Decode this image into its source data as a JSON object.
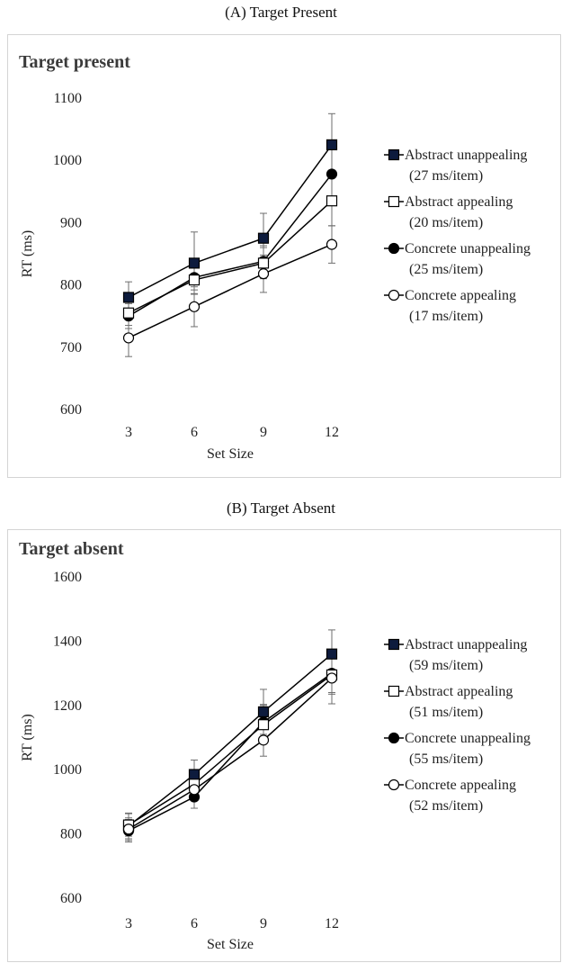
{
  "panels": [
    {
      "caption": "(A) Target Present"
    },
    {
      "caption": "(B) Target Absent"
    }
  ],
  "chart_data": [
    {
      "type": "line",
      "title": "Target present",
      "xlabel": "Set Size",
      "ylabel": "RT (ms)",
      "categories": [
        "3",
        "6",
        "9",
        "12"
      ],
      "x": [
        3,
        6,
        9,
        12
      ],
      "ylim": [
        600,
        1100
      ],
      "yticks": [
        "600",
        "700",
        "800",
        "900",
        "1000",
        "1100"
      ],
      "grid": false,
      "legend_position": "right",
      "series": [
        {
          "name": "Abstract unappealing",
          "slope": "(27 ms/item)",
          "marker": "square-filled",
          "values": [
            780,
            835,
            875,
            1025
          ],
          "errors": [
            25,
            50,
            40,
            50
          ]
        },
        {
          "name": "Abstract appealing",
          "slope": "(20 ms/item)",
          "marker": "square-open",
          "values": [
            755,
            808,
            835,
            935
          ],
          "errors": [
            20,
            22,
            25,
            40
          ]
        },
        {
          "name": "Concrete unappealing",
          "slope": "(25 ms/item)",
          "marker": "circle-filled",
          "values": [
            750,
            812,
            838,
            978
          ],
          "errors": [
            20,
            20,
            25,
            40
          ]
        },
        {
          "name": "Concrete appealing",
          "slope": "(17 ms/item)",
          "marker": "circle-open",
          "values": [
            715,
            765,
            818,
            865
          ],
          "errors": [
            30,
            32,
            30,
            30
          ]
        }
      ]
    },
    {
      "type": "line",
      "title": "Target absent",
      "xlabel": "Set Size",
      "ylabel": "RT (ms)",
      "categories": [
        "3",
        "6",
        "9",
        "12"
      ],
      "x": [
        3,
        6,
        9,
        12
      ],
      "ylim": [
        600,
        1600
      ],
      "yticks": [
        "600",
        "800",
        "1000",
        "1200",
        "1400",
        "1600"
      ],
      "grid": false,
      "legend_position": "right",
      "series": [
        {
          "name": "Abstract unappealing",
          "slope": "(59 ms/item)",
          "marker": "square-filled",
          "values": [
            825,
            985,
            1180,
            1360
          ],
          "errors": [
            40,
            45,
            70,
            75
          ]
        },
        {
          "name": "Abstract appealing",
          "slope": "(51 ms/item)",
          "marker": "square-open",
          "values": [
            828,
            955,
            1140,
            1295
          ],
          "errors": [
            35,
            40,
            60,
            60
          ]
        },
        {
          "name": "Concrete unappealing",
          "slope": "(55 ms/item)",
          "marker": "circle-filled",
          "values": [
            810,
            915,
            1148,
            1300
          ],
          "errors": [
            35,
            35,
            55,
            60
          ]
        },
        {
          "name": "Concrete appealing",
          "slope": "(52 ms/item)",
          "marker": "circle-open",
          "values": [
            815,
            938,
            1092,
            1285
          ],
          "errors": [
            35,
            35,
            50,
            80
          ]
        }
      ]
    }
  ],
  "colors": {
    "marker_fill_dark": "#0d1b3d",
    "line": "#000000",
    "error_bar": "#6e6e6e"
  }
}
